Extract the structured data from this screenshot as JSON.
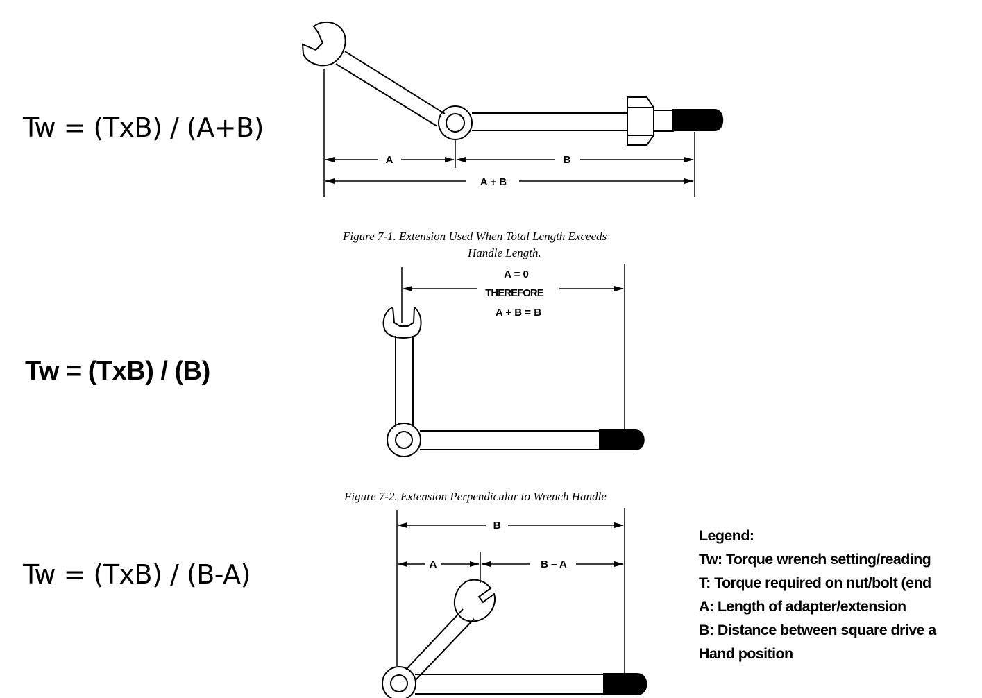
{
  "formulas": {
    "f1": "Tw = (TxB) / (A+B)",
    "f2": "Tw = (TxB) / (B)",
    "f3": "Tw = (TxB) / (B-A)"
  },
  "figure1": {
    "label_a": "A",
    "label_b": "B",
    "label_sum": "A + B",
    "caption_line1": "Figure 7-1.    Extension Used When Total Length Exceeds",
    "caption_line2": "Handle Length."
  },
  "figure2": {
    "note_line1": "A = 0",
    "note_line2": "THEREFORE",
    "note_line3": "A + B = B",
    "caption": "Figure 7-2.    Extension Perpendicular to Wrench Handle"
  },
  "figure3": {
    "label_b": "B",
    "label_a": "A",
    "label_diff": "B – A"
  },
  "legend": {
    "title": "Legend:",
    "items": [
      "Tw: Torque wrench setting/reading",
      "T: Torque required on nut/bolt (end",
      "A: Length of adapter/extension",
      "B: Distance between square drive a",
      "Hand position"
    ]
  },
  "colors": {
    "ink": "#000000",
    "paper": "#ffffff"
  }
}
